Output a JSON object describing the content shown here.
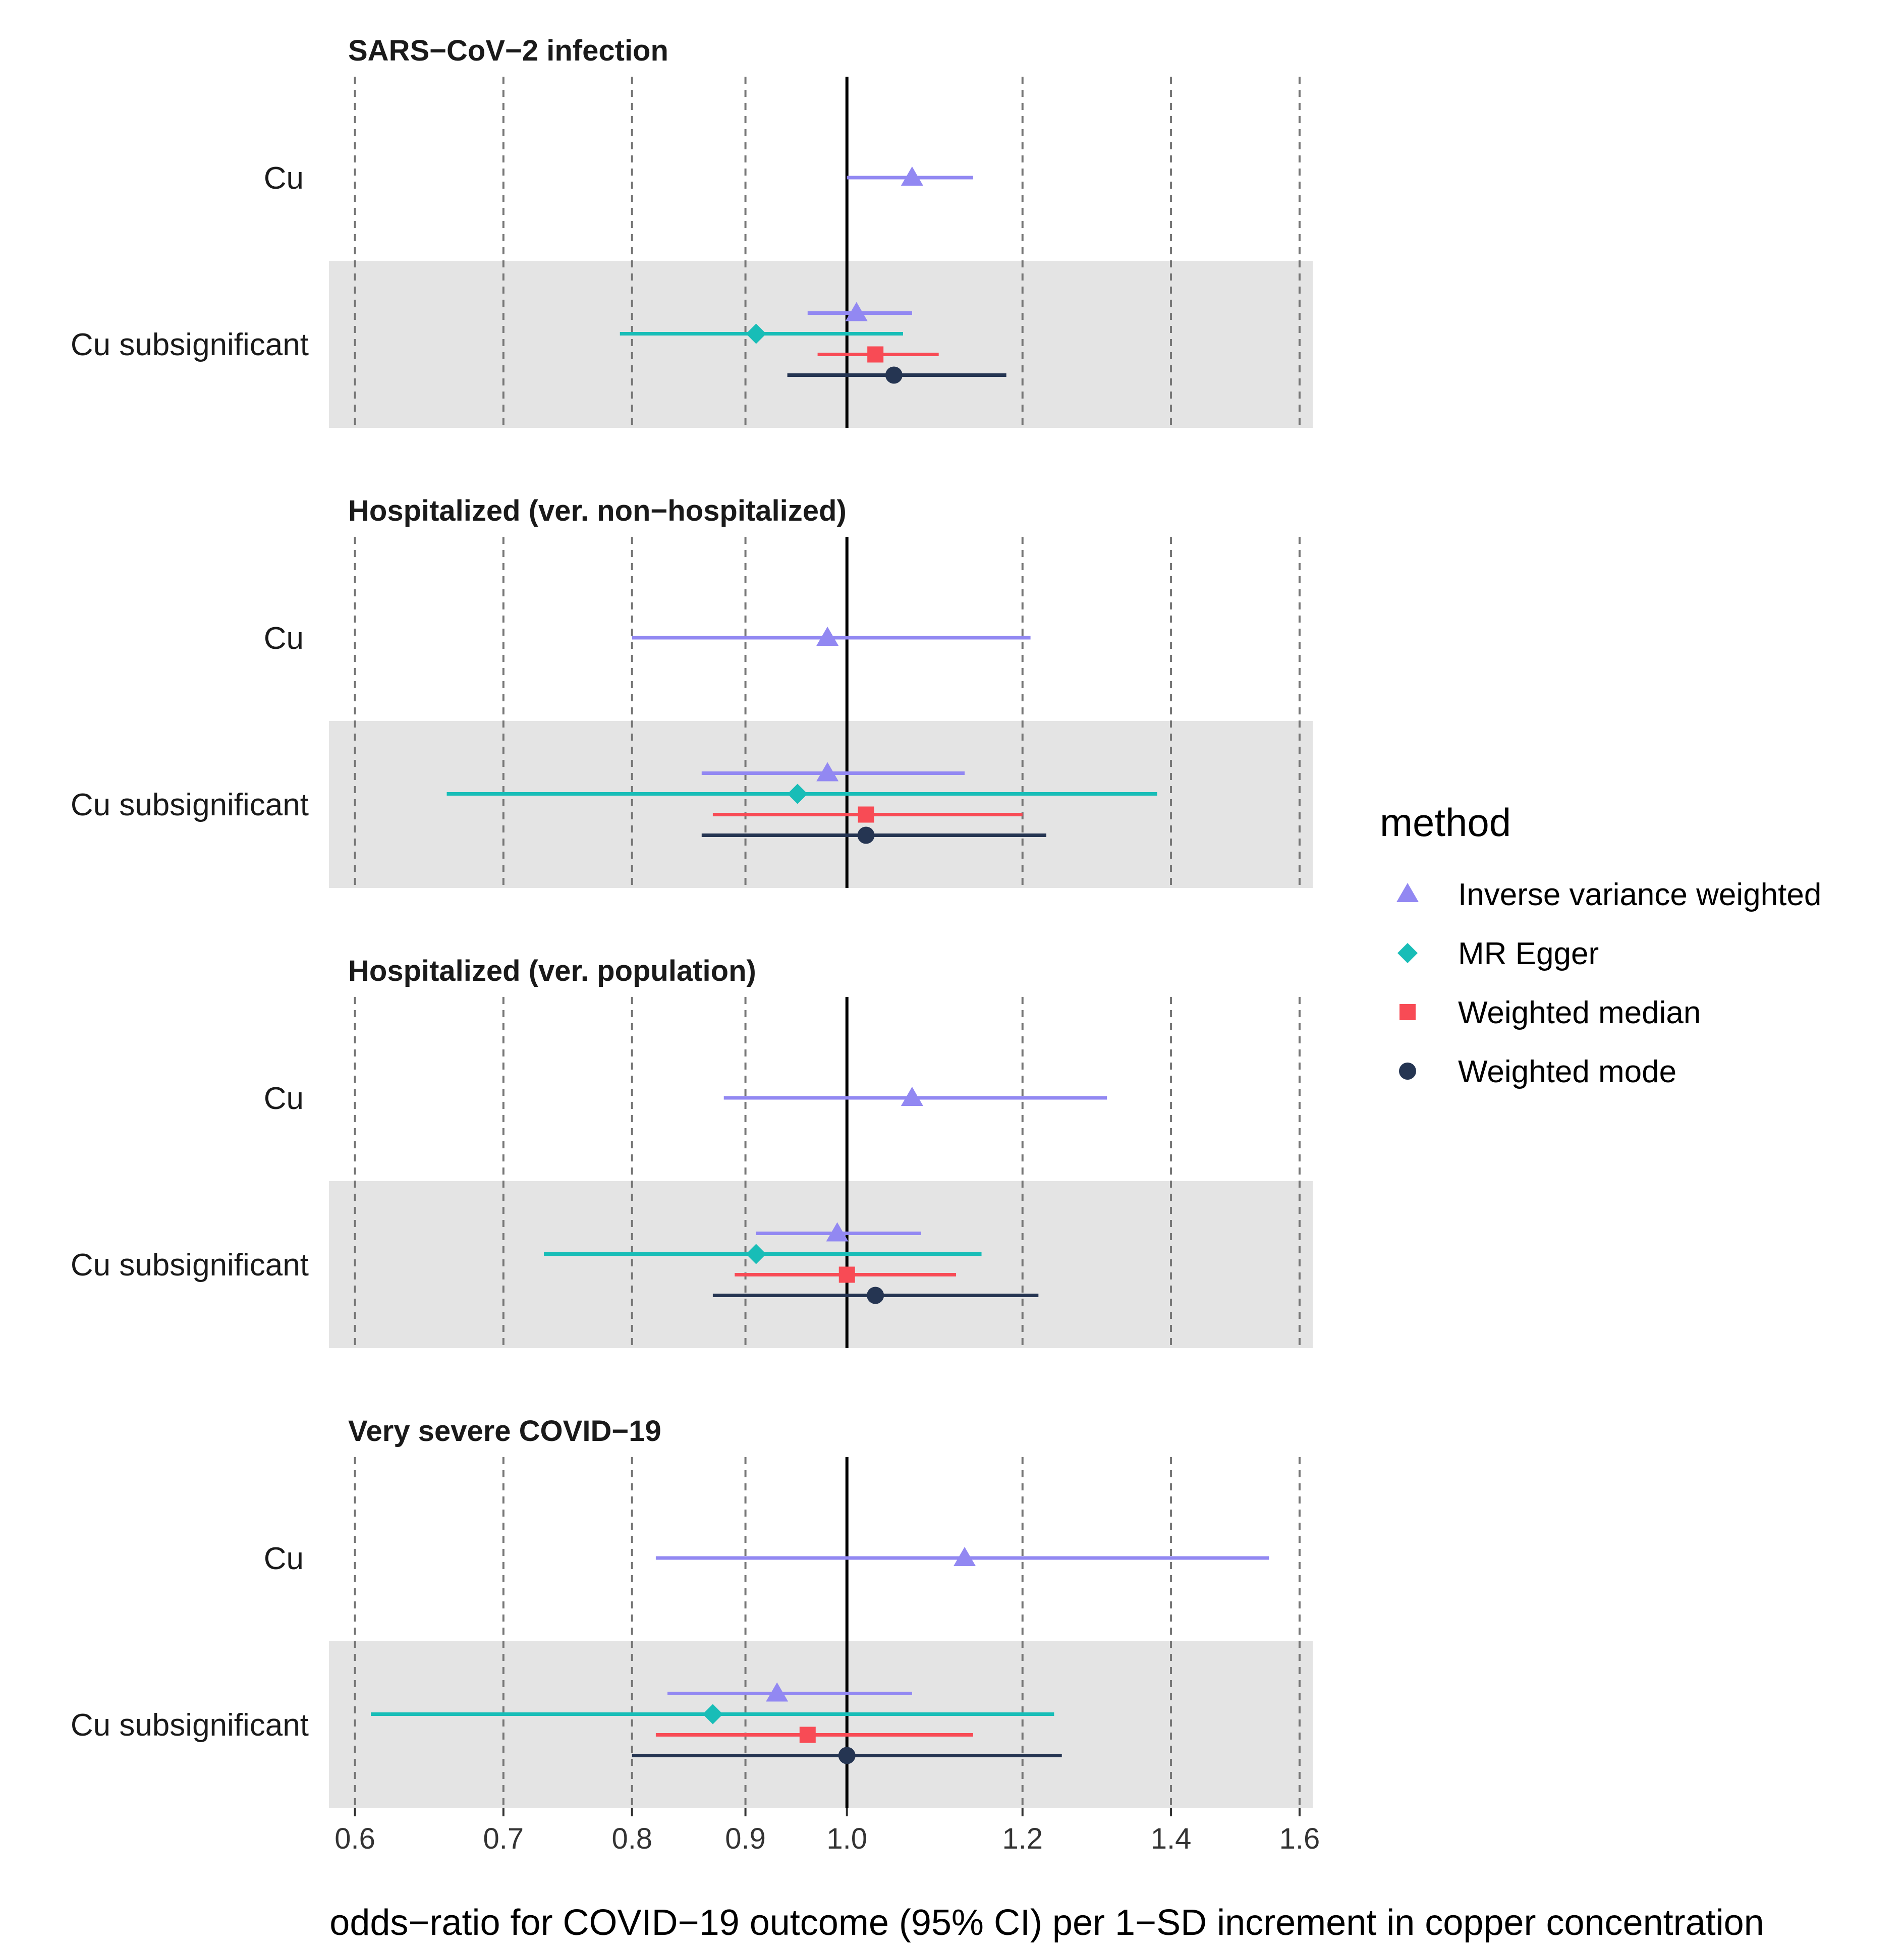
{
  "chart_data": {
    "type": "forest",
    "scale": "log",
    "xlabel": "odds−ratio for COVID−19 outcome (95% CI) per 1−SD increment in copper concentration",
    "xlim": [
      0.584,
      1.622
    ],
    "reference_line": 1.0,
    "xticks": [
      0.6,
      0.7,
      0.8,
      0.9,
      1.0,
      1.2,
      1.4,
      1.6
    ],
    "xtick_labels": [
      "0.6",
      "0.7",
      "0.8",
      "0.9",
      "1.0",
      "1.2",
      "1.4",
      "1.6"
    ],
    "legend": {
      "title": "method",
      "position": "right",
      "entries": [
        {
          "key": "ivw",
          "label": "Inverse variance weighted",
          "color": "#9288f2",
          "shape": "triangle"
        },
        {
          "key": "egger",
          "label": "MR Egger",
          "color": "#18bdb7",
          "shape": "diamond"
        },
        {
          "key": "wmed",
          "label": "Weighted median",
          "color": "#f84b55",
          "shape": "square"
        },
        {
          "key": "wmode",
          "label": "Weighted mode",
          "color": "#253552",
          "shape": "circle"
        }
      ]
    },
    "panels": [
      {
        "title": "SARS−CoV−2 infection",
        "rows": [
          {
            "label": "Cu",
            "shaded": false,
            "estimates": [
              {
                "method": "ivw",
                "or": 1.07,
                "lo": 1.0,
                "hi": 1.14
              }
            ]
          },
          {
            "label": "Cu subsignificant",
            "shaded": true,
            "estimates": [
              {
                "method": "ivw",
                "or": 1.01,
                "lo": 0.96,
                "hi": 1.07
              },
              {
                "method": "egger",
                "or": 0.91,
                "lo": 0.79,
                "hi": 1.06
              },
              {
                "method": "wmed",
                "or": 1.03,
                "lo": 0.97,
                "hi": 1.1
              },
              {
                "method": "wmode",
                "or": 1.05,
                "lo": 0.94,
                "hi": 1.18
              }
            ]
          }
        ]
      },
      {
        "title": "Hospitalized (ver. non−hospitalized)",
        "rows": [
          {
            "label": "Cu",
            "shaded": false,
            "estimates": [
              {
                "method": "ivw",
                "or": 0.98,
                "lo": 0.8,
                "hi": 1.21
              }
            ]
          },
          {
            "label": "Cu subsignificant",
            "shaded": true,
            "estimates": [
              {
                "method": "ivw",
                "or": 0.98,
                "lo": 0.86,
                "hi": 1.13
              },
              {
                "method": "egger",
                "or": 0.95,
                "lo": 0.66,
                "hi": 1.38
              },
              {
                "method": "wmed",
                "or": 1.02,
                "lo": 0.87,
                "hi": 1.2
              },
              {
                "method": "wmode",
                "or": 1.02,
                "lo": 0.86,
                "hi": 1.23
              }
            ]
          }
        ]
      },
      {
        "title": "Hospitalized (ver. population)",
        "rows": [
          {
            "label": "Cu",
            "shaded": false,
            "estimates": [
              {
                "method": "ivw",
                "or": 1.07,
                "lo": 0.88,
                "hi": 1.31
              }
            ]
          },
          {
            "label": "Cu subsignificant",
            "shaded": true,
            "estimates": [
              {
                "method": "ivw",
                "or": 0.99,
                "lo": 0.91,
                "hi": 1.08
              },
              {
                "method": "egger",
                "or": 0.91,
                "lo": 0.73,
                "hi": 1.15
              },
              {
                "method": "wmed",
                "or": 1.0,
                "lo": 0.89,
                "hi": 1.12
              },
              {
                "method": "wmode",
                "or": 1.03,
                "lo": 0.87,
                "hi": 1.22
              }
            ]
          }
        ]
      },
      {
        "title": "Very severe COVID−19",
        "rows": [
          {
            "label": "Cu",
            "shaded": false,
            "estimates": [
              {
                "method": "ivw",
                "or": 1.13,
                "lo": 0.82,
                "hi": 1.55
              }
            ]
          },
          {
            "label": "Cu subsignificant",
            "shaded": true,
            "estimates": [
              {
                "method": "ivw",
                "or": 0.93,
                "lo": 0.83,
                "hi": 1.07
              },
              {
                "method": "egger",
                "or": 0.87,
                "lo": 0.61,
                "hi": 1.24
              },
              {
                "method": "wmed",
                "or": 0.96,
                "lo": 0.82,
                "hi": 1.14
              },
              {
                "method": "wmode",
                "or": 1.0,
                "lo": 0.8,
                "hi": 1.25
              }
            ]
          }
        ]
      }
    ]
  }
}
